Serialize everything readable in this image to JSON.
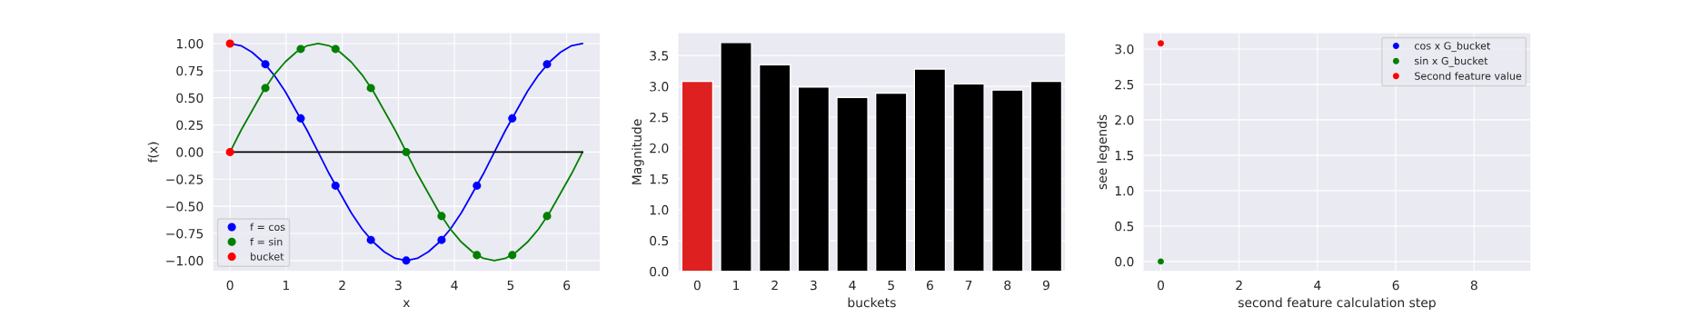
{
  "chart_data": [
    {
      "type": "scatter",
      "xlabel": "x",
      "ylabel": "f(x)",
      "xlim": [
        -0.31,
        6.6
      ],
      "ylim": [
        -1.1,
        1.1
      ],
      "xticks": [
        0,
        1,
        2,
        3,
        4,
        5,
        6
      ],
      "yticks": [
        {
          "value": -1,
          "label": "−1.00"
        },
        {
          "value": -0.75,
          "label": "−0.75"
        },
        {
          "value": -0.5,
          "label": "−0.50"
        },
        {
          "value": -0.25,
          "label": "−0.25"
        },
        {
          "value": 0,
          "label": "0.00"
        },
        {
          "value": 0.25,
          "label": "0.25"
        },
        {
          "value": 0.5,
          "label": "0.50"
        },
        {
          "value": 0.75,
          "label": "0.75"
        },
        {
          "value": 1,
          "label": "1.00"
        }
      ],
      "grid": true,
      "legend": "bottom left",
      "marker": "circle",
      "series": [
        {
          "type": "line",
          "marker": "none",
          "color": "#0000ff",
          "x": [
            0,
            0.196,
            0.393,
            0.589,
            0.785,
            0.982,
            1.178,
            1.374,
            1.571,
            1.767,
            1.963,
            2.16,
            2.356,
            2.553,
            2.749,
            2.945,
            3.142,
            3.338,
            3.534,
            3.731,
            3.927,
            4.123,
            4.32,
            4.516,
            4.712,
            4.909,
            5.105,
            5.301,
            5.498,
            5.694,
            5.89,
            6.087,
            6.283
          ],
          "values": [
            1,
            0.98,
            0.92,
            0.83,
            0.71,
            0.56,
            0.38,
            0.2,
            0,
            -0.2,
            -0.38,
            -0.56,
            -0.71,
            -0.83,
            -0.92,
            -0.98,
            -1,
            -0.98,
            -0.92,
            -0.83,
            -0.71,
            -0.56,
            -0.38,
            -0.2,
            0,
            0.2,
            0.38,
            0.56,
            0.71,
            0.83,
            0.92,
            0.98,
            1
          ]
        },
        {
          "type": "line",
          "marker": "none",
          "color": "#008000",
          "x": [
            0,
            0.196,
            0.393,
            0.589,
            0.785,
            0.982,
            1.178,
            1.374,
            1.571,
            1.767,
            1.963,
            2.16,
            2.356,
            2.553,
            2.749,
            2.945,
            3.142,
            3.338,
            3.534,
            3.731,
            3.927,
            4.123,
            4.32,
            4.516,
            4.712,
            4.909,
            5.105,
            5.301,
            5.498,
            5.694,
            5.89,
            6.087,
            6.283
          ],
          "values": [
            0,
            0.2,
            0.38,
            0.56,
            0.71,
            0.83,
            0.92,
            0.98,
            1,
            0.98,
            0.92,
            0.83,
            0.71,
            0.56,
            0.38,
            0.2,
            0,
            -0.2,
            -0.38,
            -0.56,
            -0.71,
            -0.83,
            -0.92,
            -0.98,
            -1,
            -0.98,
            -0.92,
            -0.83,
            -0.71,
            -0.56,
            -0.38,
            -0.2,
            0
          ]
        },
        {
          "type": "line",
          "marker": "none",
          "color": "#000000",
          "x": [
            0,
            6.283
          ],
          "values": [
            0,
            0
          ]
        },
        {
          "type": "scatter",
          "name": "f = cos",
          "color": "#0000ff",
          "x": [
            0.63,
            1.26,
            1.88,
            2.51,
            3.14,
            3.77,
            4.4,
            5.03,
            5.65
          ],
          "values": [
            0.81,
            0.31,
            -0.31,
            -0.81,
            -1,
            -0.81,
            -0.31,
            0.31,
            0.81
          ]
        },
        {
          "type": "scatter",
          "name": "f = sin",
          "color": "#008000",
          "x": [
            0.63,
            1.26,
            1.88,
            2.51,
            3.14,
            3.77,
            4.4,
            5.03,
            5.65
          ],
          "values": [
            0.59,
            0.95,
            0.95,
            0.59,
            0,
            -0.59,
            -0.95,
            -0.95,
            -0.59
          ]
        },
        {
          "type": "scatter",
          "name": "bucket",
          "color": "#ff0000",
          "x": [
            0,
            0
          ],
          "values": [
            1,
            0
          ]
        }
      ]
    },
    {
      "type": "bar",
      "xlabel": "buckets",
      "ylabel": "Magnitude",
      "categories": [
        "0",
        "1",
        "2",
        "3",
        "4",
        "5",
        "6",
        "7",
        "8",
        "9"
      ],
      "ylim": [
        0,
        3.87
      ],
      "yticks": [
        {
          "value": 0,
          "label": "0.0"
        },
        {
          "value": 0.5,
          "label": "0.5"
        },
        {
          "value": 1,
          "label": "1.0"
        },
        {
          "value": 1.5,
          "label": "1.5"
        },
        {
          "value": 2,
          "label": "2.0"
        },
        {
          "value": 2.5,
          "label": "2.5"
        },
        {
          "value": 3,
          "label": "3.0"
        },
        {
          "value": 3.5,
          "label": "3.5"
        }
      ],
      "grid": "y",
      "values": [
        3.08,
        3.71,
        3.35,
        2.99,
        2.82,
        2.89,
        3.28,
        3.04,
        2.94,
        3.08
      ],
      "colors": [
        "#de2020",
        "#000000",
        "#000000",
        "#000000",
        "#000000",
        "#000000",
        "#000000",
        "#000000",
        "#000000",
        "#000000"
      ]
    },
    {
      "type": "scatter",
      "xlabel": "second feature calculation step",
      "ylabel": "see legends",
      "xlim": [
        -0.45,
        9.45
      ],
      "ylim": [
        -0.14,
        3.23
      ],
      "xticks": [
        0,
        2,
        4,
        6,
        8
      ],
      "yticks": [
        {
          "value": 0,
          "label": "0.0"
        },
        {
          "value": 0.5,
          "label": "0.5"
        },
        {
          "value": 1,
          "label": "1.0"
        },
        {
          "value": 1.5,
          "label": "1.5"
        },
        {
          "value": 2,
          "label": "2.0"
        },
        {
          "value": 2.5,
          "label": "2.5"
        },
        {
          "value": 3,
          "label": "3.0"
        }
      ],
      "grid": true,
      "legend": "top right",
      "marker": "circle",
      "series": [
        {
          "name": "cos x G_bucket",
          "color": "#0000ff"
        },
        {
          "name": "sin x G_bucket",
          "color": "#008000",
          "x": [
            0
          ],
          "values": [
            0
          ]
        },
        {
          "name": "Second feature value",
          "color": "#ff0000",
          "x": [
            0
          ],
          "values": [
            3.08
          ]
        }
      ]
    }
  ]
}
